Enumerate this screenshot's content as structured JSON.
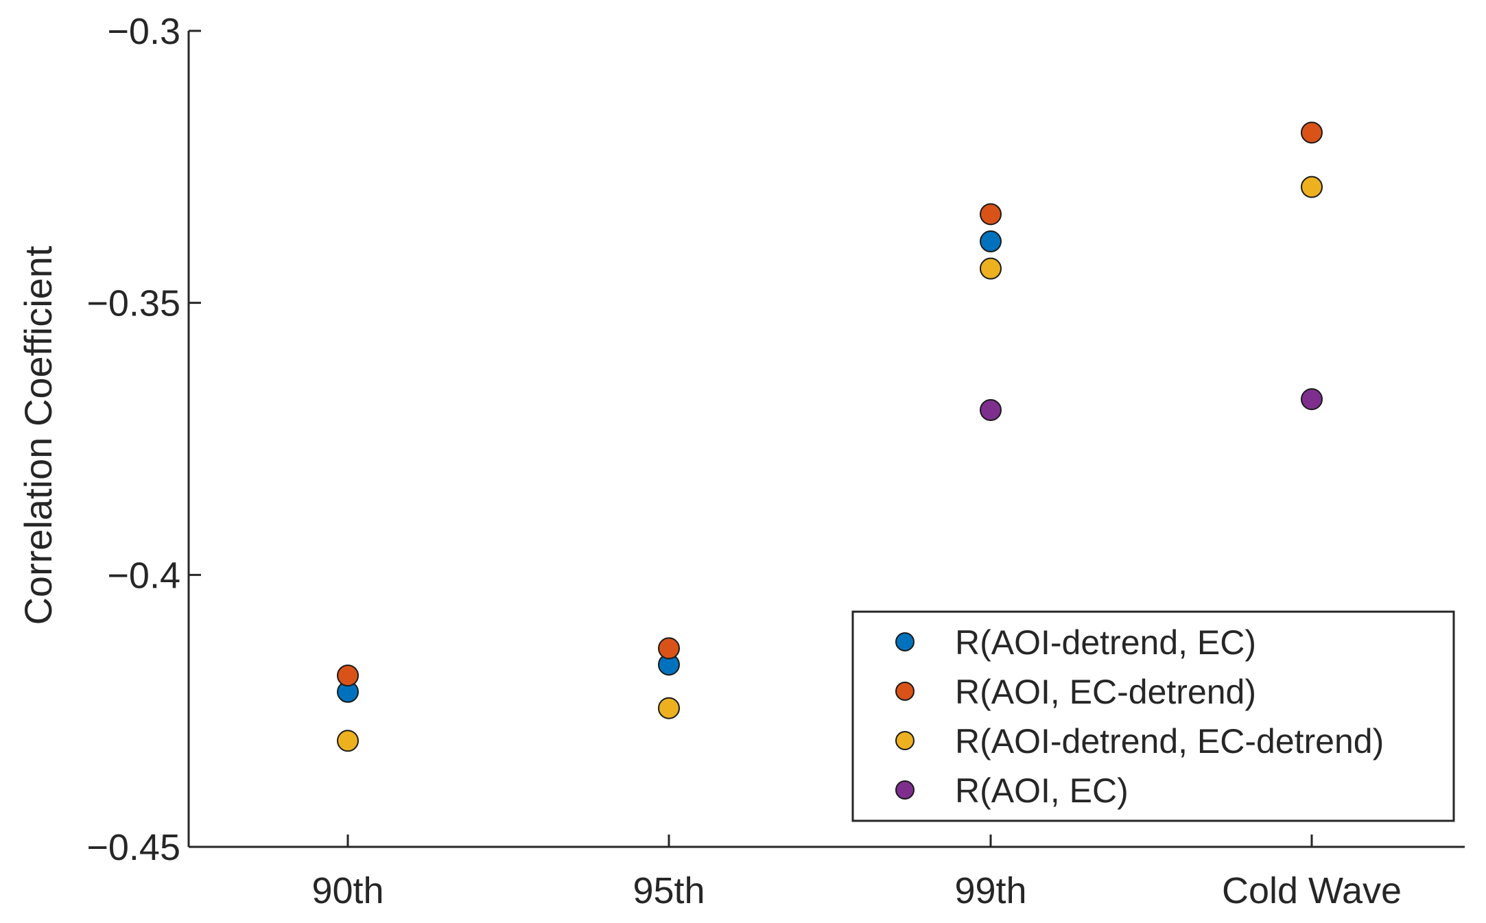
{
  "chart_data": {
    "type": "scatter",
    "title": "",
    "xlabel": "",
    "ylabel": "Correlation Coefficient",
    "categories": [
      "90th",
      "95th",
      "99th",
      "Cold Wave"
    ],
    "ylim": [
      -0.45,
      -0.3
    ],
    "yticks": [
      -0.3,
      -0.35,
      -0.4,
      -0.45
    ],
    "ytick_labels": [
      "−0.3",
      "−0.35",
      "−0.4",
      "−0.45"
    ],
    "grid": false,
    "legend_position": "bottom-right",
    "series": [
      {
        "name": "R(AOI-detrend, EC)",
        "color": "#0072BD",
        "values": [
          -0.4215,
          -0.4165,
          -0.3387,
          null
        ]
      },
      {
        "name": "R(AOI, EC-detrend)",
        "color": "#D95319",
        "values": [
          -0.4185,
          -0.4135,
          -0.3337,
          -0.3187
        ]
      },
      {
        "name": "R(AOI-detrend, EC-detrend)",
        "color": "#EDB120",
        "values": [
          -0.4305,
          -0.4245,
          -0.3437,
          -0.3287
        ]
      },
      {
        "name": "R(AOI, EC)",
        "color": "#7E2F8E",
        "values": [
          null,
          null,
          -0.3697,
          -0.3677
        ]
      }
    ]
  }
}
